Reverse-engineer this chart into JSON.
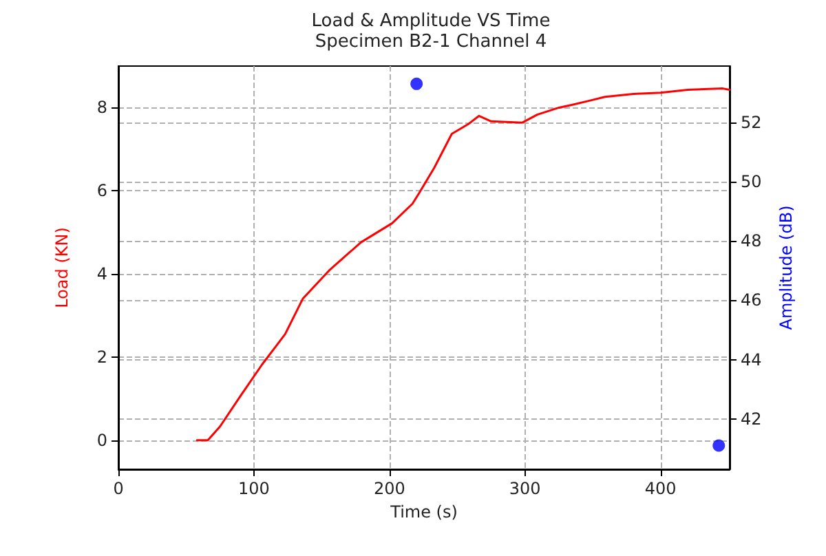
{
  "chart_data": {
    "type": "line",
    "title": "Load & Amplitude VS Time",
    "subtitle": "Specimen B2-1 Channel 4",
    "xlabel": "Time (s)",
    "ylabel": "Load (KN)",
    "y2label": "Amplitude (dB)",
    "xlim": [
      0,
      451
    ],
    "xticks": [
      0,
      100,
      200,
      300,
      400
    ],
    "ylim": [
      -0.7,
      9.0
    ],
    "yticks": [
      0,
      2,
      4,
      6,
      8
    ],
    "y2lim": [
      40.3,
      53.9
    ],
    "y2ticks": [
      42,
      44,
      46,
      48,
      50,
      52
    ],
    "grid": true,
    "series": [
      {
        "color": "#ff0000",
        "marker": "none",
        "line_style": "solid",
        "x": [
          58,
          66,
          75,
          90,
          106,
          116,
          123,
          136,
          156,
          179,
          202,
          217,
          222,
          233,
          246,
          258,
          266,
          275,
          298,
          309,
          325,
          335,
          348,
          359,
          380,
          400,
          420,
          446,
          451
        ],
        "values": [
          0,
          0,
          0.33,
          1.06,
          1.82,
          2.25,
          2.55,
          3.4,
          4.1,
          4.76,
          5.22,
          5.69,
          5.95,
          6.55,
          7.37,
          7.6,
          7.8,
          7.67,
          7.64,
          7.83,
          8.0,
          8.07,
          8.17,
          8.26,
          8.33,
          8.36,
          8.43,
          8.46,
          8.43
        ]
      },
      {
        "type": "scatter",
        "color": "#0000ff",
        "marker": "circle",
        "axis": "y2",
        "x": [
          220,
          443
        ],
        "values": [
          53.3,
          41.1
        ]
      }
    ]
  }
}
